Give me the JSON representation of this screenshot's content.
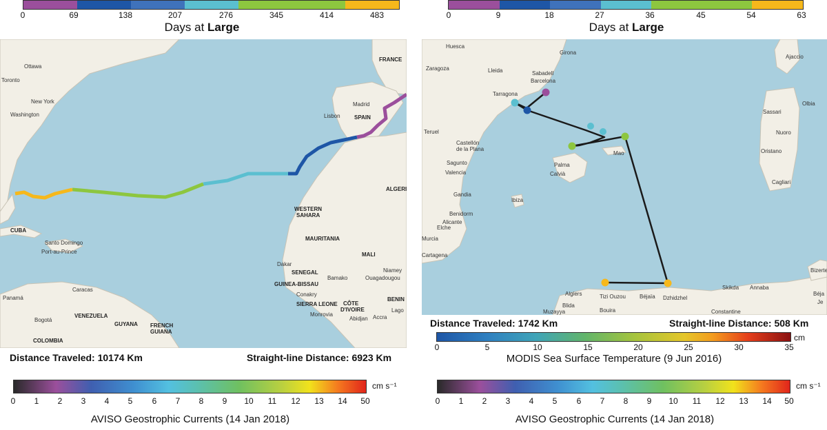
{
  "left_panel": {
    "days_scale": {
      "title_prefix": "Days at",
      "title_bold": "Large",
      "ticks": [
        "0",
        "69",
        "138",
        "207",
        "276",
        "345",
        "414",
        "483"
      ],
      "colors": [
        "#9b4f9c",
        "#1e56a6",
        "#3f72bb",
        "#5bbfd0",
        "#8dc63f",
        "#8dc63f",
        "#f6b81b"
      ]
    },
    "map_labels": [
      "Ottawa",
      "Toronto",
      "New York",
      "Washington",
      "Santo Domingo",
      "Port-au-Prince",
      "CUBA",
      "Caracas",
      "Panamá",
      "VENEZUELA",
      "GUYANA",
      "FRENCH",
      "GUIANA",
      "Bogotá",
      "COLOMBIA",
      "FRANCE",
      "Madrid",
      "Lisbon",
      "SPAIN",
      "ALGERI",
      "WESTERN",
      "SAHARA",
      "MAURITANIA",
      "MALI",
      "Dakar",
      "SENEGAL",
      "Bamako",
      "Niamey",
      "Ouagadougou",
      "GUINEA-BISSAU",
      "Conakry",
      "SIERRA LEONE",
      "CÔTE",
      "D'IVOIRE",
      "Monrovia",
      "Abidjan",
      "Accra",
      "BENIN",
      "Lago"
    ],
    "distance_traveled": "Distance Traveled: 10174 Km",
    "straight_line": "Straight-line Distance: 6923 Km",
    "current_scale": {
      "ticks": [
        "0",
        "1",
        "2",
        "3",
        "4",
        "5",
        "6",
        "7",
        "8",
        "9",
        "10",
        "11",
        "12",
        "13",
        "14",
        "50"
      ],
      "unit": "cm s⁻¹",
      "title": "AVISO Geostrophic Currents (14 Jan 2018)"
    }
  },
  "right_panel": {
    "days_scale": {
      "title_prefix": "Days at",
      "title_bold": "Large",
      "ticks": [
        "0",
        "9",
        "18",
        "27",
        "36",
        "45",
        "54",
        "63"
      ],
      "colors": [
        "#9b4f9c",
        "#1e56a6",
        "#3f72bb",
        "#5bbfd0",
        "#8dc63f",
        "#8dc63f",
        "#f6b81b"
      ]
    },
    "map_labels": [
      "Huesca",
      "Girona",
      "Zaragoza",
      "Lleida",
      "Sabadell",
      "Barcelona",
      "Tarragona",
      "Teruel",
      "Castellón",
      "de la Plana",
      "Sagunto",
      "Valencia",
      "Palma",
      "Calvià",
      "Mao",
      "Gandia",
      "Ibiza",
      "Benidorm",
      "Alicante",
      "Elche",
      "Murcia",
      "Cartagena",
      "Algiers",
      "Tizi Ouzou",
      "Béjaïa",
      "Dzhidzhel",
      "Skikda",
      "Annaba",
      "Constantine",
      "Blida",
      "Bouira",
      "Muzayya",
      "Ajaccio",
      "Sassari",
      "Olbia",
      "Nuoro",
      "Oristano",
      "Cagliari",
      "Bizerte",
      "Béja",
      "Je"
    ],
    "distance_traveled": "Distance Traveled: 1742 Km",
    "straight_line": "Straight-line Distance: 508 Km",
    "sst_scale": {
      "ticks": [
        "0",
        "5",
        "10",
        "15",
        "20",
        "25",
        "30",
        "35"
      ],
      "unit": "cm",
      "title": "MODIS Sea Surface Temperature (9 Jun 2016)"
    },
    "current_scale": {
      "ticks": [
        "0",
        "1",
        "2",
        "3",
        "4",
        "5",
        "6",
        "7",
        "8",
        "9",
        "10",
        "11",
        "12",
        "13",
        "14",
        "50"
      ],
      "unit": "cm s⁻¹",
      "title": "AVISO Geostrophic Currents (14 Jan 2018)"
    }
  }
}
